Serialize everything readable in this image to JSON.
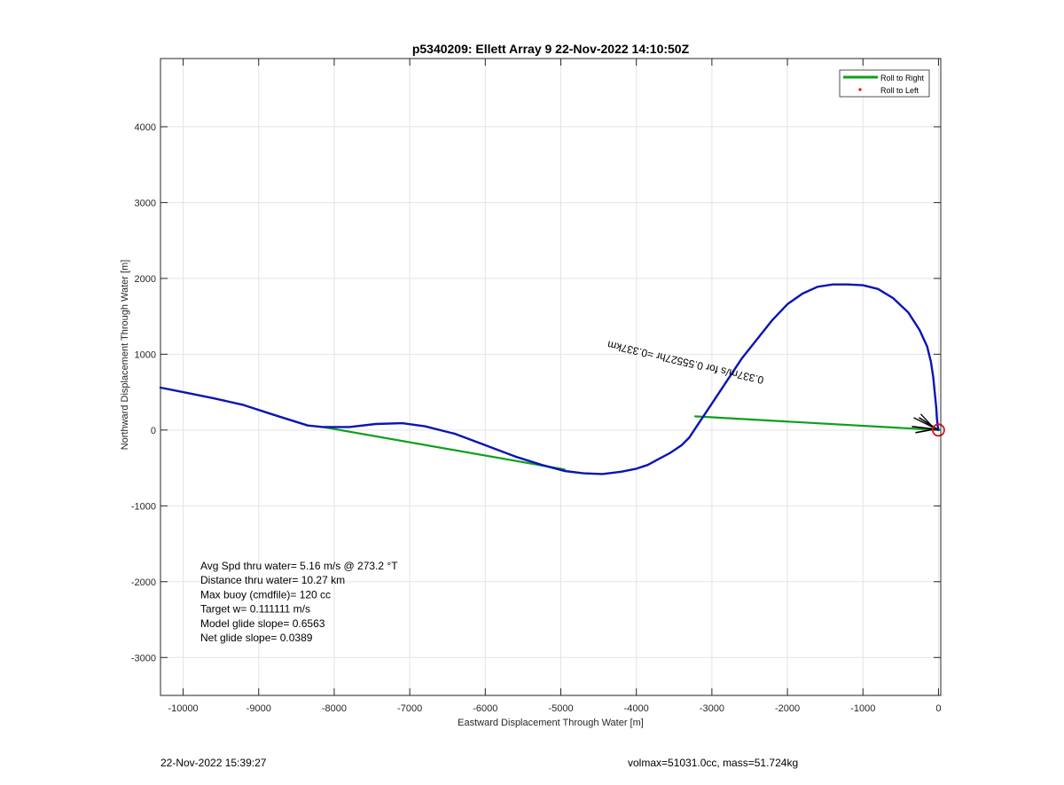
{
  "chart_data": {
    "type": "line",
    "title": "p5340209: Ellett Array 9 22-Nov-2022 14:10:50Z",
    "xlabel": "Eastward Displacement Through Water [m]",
    "ylabel": "Northward Displacement Through Water [m]",
    "xlim": [
      -10300,
      30
    ],
    "ylim": [
      -3500,
      4900
    ],
    "x_ticks": [
      -10000,
      -9000,
      -8000,
      -7000,
      -6000,
      -5000,
      -4000,
      -3000,
      -2000,
      -1000,
      0
    ],
    "x_tick_labels": [
      "-10000",
      "-9000",
      "-8000",
      "-7000",
      "-6000",
      "-5000",
      "-4000",
      "-3000",
      "-2000",
      "-1000",
      "0"
    ],
    "y_ticks": [
      -3000,
      -2000,
      -1000,
      0,
      1000,
      2000,
      3000,
      4000
    ],
    "y_tick_labels": [
      "-3000",
      "-2000",
      "-1000",
      "0",
      "1000",
      "2000",
      "3000",
      "4000"
    ],
    "grid": true,
    "legend_position": "top-right",
    "legend": [
      {
        "label": "Roll to Right",
        "color": "#0ca01c",
        "style": "line"
      },
      {
        "label": "Roll to Left",
        "color": "#ff0000",
        "style": "dot"
      }
    ],
    "series": [
      {
        "name": "",
        "color": "#0a14b4",
        "x": [
          0,
          -10,
          -20,
          -30,
          -50,
          -70,
          -100,
          -150,
          -250,
          -400,
          -600,
          -800,
          -1000,
          -1200,
          -1400,
          -1600,
          -1800,
          -2000,
          -2200,
          -2400,
          -2600,
          -2800,
          -3000,
          -3100,
          -3200,
          -3300,
          -3400,
          -3550,
          -3700,
          -3850,
          -4000,
          -4200,
          -4450,
          -4700,
          -4950,
          -5250,
          -5600,
          -6000,
          -6400,
          -6800,
          -7100,
          -7450,
          -7800,
          -8150,
          -8350,
          -8800,
          -9200,
          -9600,
          -10000,
          -10300
        ],
        "y": [
          0,
          50,
          150,
          300,
          500,
          700,
          900,
          1100,
          1320,
          1550,
          1740,
          1860,
          1910,
          1920,
          1920,
          1890,
          1800,
          1660,
          1450,
          1200,
          950,
          650,
          350,
          200,
          50,
          -100,
          -200,
          -300,
          -380,
          -460,
          -510,
          -550,
          -580,
          -570,
          -540,
          -460,
          -350,
          -200,
          -50,
          50,
          90,
          80,
          40,
          40,
          60,
          200,
          330,
          420,
          500,
          560
        ]
      },
      {
        "name": "",
        "color": "#0ca01c",
        "x": [
          0,
          -3220
        ],
        "y": [
          0,
          180
        ]
      },
      {
        "name": "",
        "color": "#0ca01c",
        "x": [
          -8150,
          -4950
        ],
        "y": [
          40,
          -520
        ]
      }
    ],
    "end_marker": {
      "x": 0,
      "y": 0,
      "color": "#d01818"
    },
    "current_vector_label": "0.337m/s for 0.55527hr =0.337km",
    "stats": [
      "Avg Spd thru water=  5.16 m/s @ 273.2 °T",
      "Distance thru water= 10.27 km",
      "Max buoy (cmdfile)= 120 cc",
      "Target w= 0.111111 m/s",
      "Model glide slope= 0.6563",
      "Net glide slope= 0.0389"
    ]
  },
  "footer": {
    "timestamp": "22-Nov-2022 15:39:27",
    "info": "volmax=51031.0cc, mass=51.724kg"
  }
}
